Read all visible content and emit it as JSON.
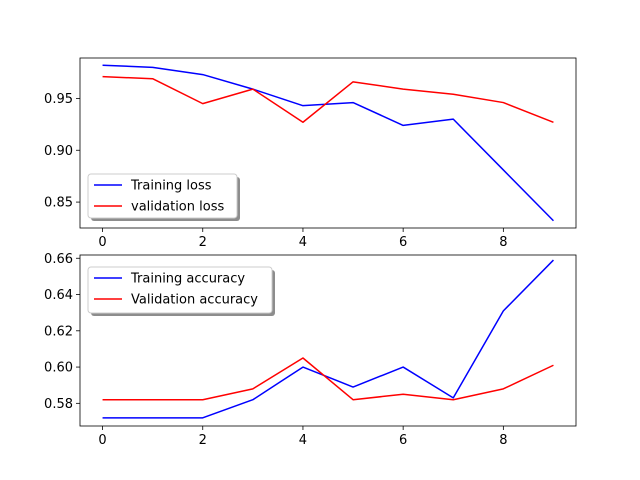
{
  "chart_data": [
    {
      "type": "line",
      "title": "",
      "xlabel": "",
      "ylabel": "",
      "xlim": [
        -0.45,
        9.45
      ],
      "ylim": [
        0.825,
        0.989
      ],
      "xticks": [
        0,
        2,
        4,
        6,
        8
      ],
      "yticks": [
        0.85,
        0.9,
        0.95
      ],
      "ytick_labels": [
        "0.85",
        "0.90",
        "0.95"
      ],
      "grid": false,
      "legend_position": "lower-left",
      "x": [
        0,
        1,
        2,
        3,
        4,
        5,
        6,
        7,
        8,
        9
      ],
      "series": [
        {
          "name": "Training loss",
          "color": "#0000ff",
          "values": [
            0.982,
            0.98,
            0.973,
            0.959,
            0.943,
            0.946,
            0.924,
            0.93,
            0.881,
            0.832
          ]
        },
        {
          "name": "validation loss",
          "color": "#ff0000",
          "values": [
            0.971,
            0.969,
            0.945,
            0.959,
            0.927,
            0.966,
            0.959,
            0.954,
            0.946,
            0.927
          ]
        }
      ]
    },
    {
      "type": "line",
      "title": "",
      "xlabel": "",
      "ylabel": "",
      "xlim": [
        -0.45,
        9.45
      ],
      "ylim": [
        0.5675,
        0.6618
      ],
      "xticks": [
        0,
        2,
        4,
        6,
        8
      ],
      "yticks": [
        0.58,
        0.6,
        0.62,
        0.64,
        0.66
      ],
      "ytick_labels": [
        "0.58",
        "0.60",
        "0.62",
        "0.64",
        "0.66"
      ],
      "grid": false,
      "legend_position": "upper-left",
      "x": [
        0,
        1,
        2,
        3,
        4,
        5,
        6,
        7,
        8,
        9
      ],
      "series": [
        {
          "name": "Training accuracy",
          "color": "#0000ff",
          "values": [
            0.572,
            0.572,
            0.572,
            0.582,
            0.6,
            0.589,
            0.6,
            0.583,
            0.631,
            0.659
          ]
        },
        {
          "name": "Validation accuracy",
          "color": "#ff0000",
          "values": [
            0.582,
            0.582,
            0.582,
            0.588,
            0.605,
            0.582,
            0.585,
            0.582,
            0.588,
            0.601
          ]
        }
      ]
    }
  ]
}
